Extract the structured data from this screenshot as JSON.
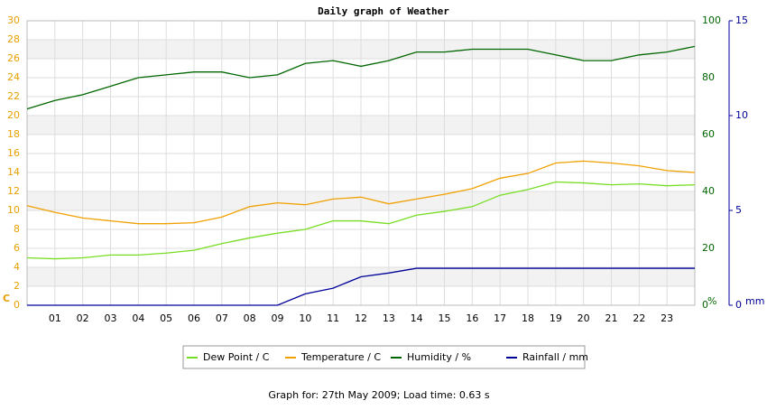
{
  "chart_data": {
    "type": "line",
    "title": "Daily graph of Weather",
    "footer": "Graph for: 27th May 2009; Load time: 0.63 s",
    "x": [
      0,
      1,
      2,
      3,
      4,
      5,
      6,
      7,
      8,
      9,
      10,
      11,
      12,
      13,
      14,
      15,
      16,
      17,
      18,
      19,
      20,
      21,
      22,
      23,
      24
    ],
    "xlim": [
      0,
      24
    ],
    "xticks": [
      {
        "value": 1,
        "label": "01"
      },
      {
        "value": 2,
        "label": "02"
      },
      {
        "value": 3,
        "label": "03"
      },
      {
        "value": 4,
        "label": "04"
      },
      {
        "value": 5,
        "label": "05"
      },
      {
        "value": 6,
        "label": "06"
      },
      {
        "value": 7,
        "label": "07"
      },
      {
        "value": 8,
        "label": "08"
      },
      {
        "value": 9,
        "label": "09"
      },
      10,
      11,
      12,
      13,
      14,
      15,
      16,
      17,
      18,
      19,
      20,
      21,
      22,
      23
    ],
    "ylim": [
      0,
      30
    ],
    "yticks": [
      0,
      2,
      4,
      6,
      8,
      10,
      12,
      14,
      16,
      18,
      20,
      22,
      24,
      26,
      28,
      30
    ],
    "ylabel": "C",
    "ycolor": "#e8a000",
    "y2lim": [
      0,
      100
    ],
    "y2ticks": [
      0,
      20,
      40,
      60,
      80,
      100
    ],
    "y2label": "%",
    "y2color": "#006600",
    "y3lim": [
      0,
      15
    ],
    "y3ticks": [
      0,
      5,
      10,
      15
    ],
    "y3label": "mm",
    "y3color": "#000099",
    "grid": true,
    "series": [
      {
        "name": "Dew Point / C",
        "color": "#77dd22",
        "axis": "y",
        "values": [
          5.0,
          4.9,
          5.0,
          5.3,
          5.3,
          5.5,
          5.8,
          6.5,
          7.1,
          7.6,
          8.0,
          8.9,
          8.9,
          8.6,
          9.5,
          9.9,
          10.4,
          11.6,
          12.2,
          13.0,
          12.9,
          12.7,
          12.8,
          12.6,
          12.7
        ]
      },
      {
        "name": "Temperature / C",
        "color": "#f0a000",
        "axis": "y",
        "values": [
          10.5,
          9.8,
          9.2,
          8.9,
          8.6,
          8.6,
          8.7,
          9.3,
          10.4,
          10.8,
          10.6,
          11.2,
          11.4,
          10.7,
          11.2,
          11.7,
          12.3,
          13.4,
          13.9,
          15.0,
          15.2,
          15.0,
          14.7,
          14.2,
          14.0
        ]
      },
      {
        "name": "Humidity / %",
        "color": "#006600",
        "axis": "y2",
        "values": [
          69,
          72,
          74,
          77,
          80,
          81,
          82,
          82,
          80,
          81,
          85,
          86,
          84,
          86,
          89,
          89,
          90,
          90,
          90,
          88,
          86,
          86,
          88,
          89,
          91
        ]
      },
      {
        "name": "Rainfall / mm",
        "color": "#000099",
        "axis": "y3",
        "values": [
          0,
          0,
          0,
          0,
          0,
          0,
          0,
          0,
          0,
          0,
          0.6,
          0.9,
          1.5,
          1.7,
          1.95,
          1.95,
          1.95,
          1.95,
          1.95,
          1.95,
          1.95,
          1.95,
          1.95,
          1.95,
          1.95
        ]
      }
    ]
  }
}
